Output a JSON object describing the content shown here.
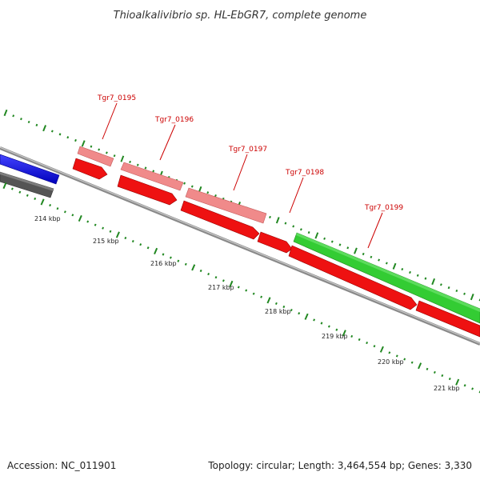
{
  "title": "Thioalkalivibrio sp. HL-EbGR7, complete genome",
  "footer": {
    "accession": "Accession: NC_011901",
    "summary": "Topology: circular; Length: 3,464,554 bp; Genes: 3,330"
  },
  "colors": {
    "gene_label": "#cc0000",
    "cds": "#ee1111",
    "gene": "#f08080",
    "green_gene": "#33cc33",
    "blue_gene": "#1111ee",
    "grey_gene": "#555555",
    "backbone": "#8a8a8a",
    "tick": "#228822"
  },
  "ruler": {
    "labels": [
      "214 kbp",
      "215 kbp",
      "216 kbp",
      "217 kbp",
      "218 kbp",
      "219 kbp",
      "220 kbp",
      "221 kbp"
    ]
  },
  "genes": [
    {
      "label": "Tgr7_0195"
    },
    {
      "label": "Tgr7_0196"
    },
    {
      "label": "Tgr7_0197"
    },
    {
      "label": "Tgr7_0198"
    },
    {
      "label": "Tgr7_0199"
    }
  ]
}
